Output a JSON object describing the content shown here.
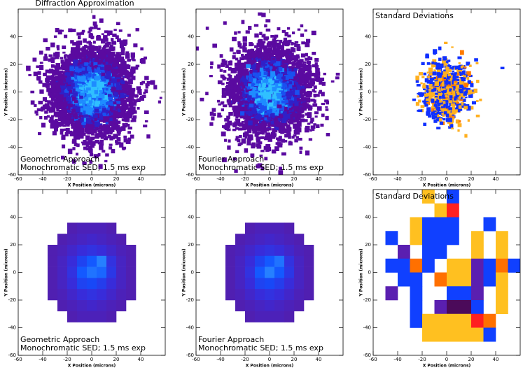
{
  "chart_data": [
    {
      "type": "speckle",
      "title": "Diffraction Approximation",
      "notes": [
        "Geometric Approach",
        "Monochromatic SED; 1.5 ms exp"
      ],
      "x_label": "X Position (microns)",
      "y_label": "Y Position (microns)",
      "xlim": [
        -60,
        60
      ],
      "ylim": [
        -60,
        60
      ],
      "xticks": [
        -60,
        -40,
        -20,
        0,
        20,
        40
      ],
      "yticks": [
        -60,
        -40,
        -20,
        0,
        20,
        40
      ]
    },
    {
      "type": "speckle",
      "notes": [
        "Fourier Approach",
        "Monochromatic SED; 1.5 ms exp"
      ],
      "x_label": "X Position (microns)",
      "y_label": "Y Position (microns)",
      "xlim": [
        -60,
        60
      ],
      "ylim": [
        -60,
        60
      ],
      "xticks": [
        -60,
        -40,
        -20,
        0,
        20,
        40
      ],
      "yticks": [
        -60,
        -40,
        -20,
        0,
        20,
        40
      ]
    },
    {
      "type": "speckle-deviation",
      "note_top": "Standard Deviations",
      "x_label": "X Position (microns)",
      "y_label": "Y Position (microns)",
      "xlim": [
        -60,
        60
      ],
      "ylim": [
        -60,
        60
      ],
      "xticks": [
        -60,
        -40,
        -20,
        0,
        20,
        40
      ],
      "yticks": [
        -60,
        -40,
        -20,
        0,
        20,
        40
      ]
    },
    {
      "type": "heatmap",
      "notes": [
        "Geometric Approach",
        "Monochromatic SED; 1.5 ms exp"
      ],
      "x_label": "X Position (microns)",
      "y_label": "Y Position (microns)",
      "xlim": [
        -60,
        60
      ],
      "ylim": [
        -60,
        60
      ],
      "xticks": [
        -60,
        -40,
        -20,
        0,
        20,
        40
      ],
      "yticks": [
        -60,
        -40,
        -20,
        0,
        20,
        40
      ],
      "colorscale": [
        "#5a1aa0",
        "#3a2ad8",
        "#1050ff",
        "#38a8ff"
      ],
      "x": [
        -32,
        -24,
        -16,
        -8,
        0,
        8,
        16,
        24,
        32
      ],
      "y": [
        32,
        24,
        16,
        8,
        0,
        -8,
        -16,
        -24,
        -32
      ],
      "z": [
        [
          null,
          null,
          0.1,
          0.15,
          0.15,
          0.15,
          0.1,
          null,
          null
        ],
        [
          null,
          0.1,
          0.15,
          0.2,
          0.25,
          0.2,
          0.15,
          0.1,
          null
        ],
        [
          0.1,
          0.15,
          0.25,
          0.35,
          0.4,
          0.35,
          0.25,
          0.15,
          0.1
        ],
        [
          0.1,
          0.2,
          0.35,
          0.55,
          0.7,
          0.85,
          0.4,
          0.2,
          0.1
        ],
        [
          0.1,
          0.2,
          0.4,
          0.7,
          0.8,
          0.75,
          0.45,
          0.2,
          0.1
        ],
        [
          0.1,
          0.2,
          0.35,
          0.55,
          0.6,
          0.5,
          0.35,
          0.2,
          0.1
        ],
        [
          0.1,
          0.15,
          0.25,
          0.35,
          0.4,
          0.35,
          0.25,
          0.15,
          0.1
        ],
        [
          null,
          0.1,
          0.15,
          0.2,
          0.25,
          0.2,
          0.15,
          0.1,
          null
        ],
        [
          null,
          null,
          0.1,
          0.15,
          0.15,
          0.15,
          0.1,
          null,
          null
        ]
      ]
    },
    {
      "type": "heatmap",
      "notes": [
        "Fourier Approach",
        "Monochromatic SED; 1.5 ms exp"
      ],
      "x_label": "X Position (microns)",
      "y_label": "Y Position (microns)",
      "xlim": [
        -60,
        60
      ],
      "ylim": [
        -60,
        60
      ],
      "xticks": [
        -60,
        -40,
        -20,
        0,
        20,
        40
      ],
      "yticks": [
        -60,
        -40,
        -20,
        0,
        20,
        40
      ],
      "colorscale": [
        "#5a1aa0",
        "#3a2ad8",
        "#1050ff",
        "#38a8ff"
      ],
      "x": [
        -32,
        -24,
        -16,
        -8,
        0,
        8,
        16,
        24,
        32
      ],
      "y": [
        32,
        24,
        16,
        8,
        0,
        -8,
        -16,
        -24,
        -32
      ],
      "z": [
        [
          null,
          null,
          0.1,
          0.15,
          0.15,
          0.15,
          0.1,
          null,
          null
        ],
        [
          null,
          0.1,
          0.15,
          0.2,
          0.25,
          0.2,
          0.15,
          0.1,
          null
        ],
        [
          0.1,
          0.15,
          0.25,
          0.35,
          0.4,
          0.35,
          0.25,
          0.15,
          0.1
        ],
        [
          0.1,
          0.2,
          0.35,
          0.55,
          0.7,
          0.8,
          0.4,
          0.2,
          0.1
        ],
        [
          0.1,
          0.2,
          0.4,
          0.7,
          0.85,
          0.7,
          0.45,
          0.2,
          0.1
        ],
        [
          0.1,
          0.2,
          0.35,
          0.55,
          0.6,
          0.5,
          0.35,
          0.2,
          0.1
        ],
        [
          0.1,
          0.15,
          0.25,
          0.35,
          0.4,
          0.35,
          0.25,
          0.15,
          0.1
        ],
        [
          null,
          0.1,
          0.15,
          0.2,
          0.25,
          0.2,
          0.15,
          0.1,
          null
        ],
        [
          null,
          null,
          0.1,
          0.15,
          0.15,
          0.15,
          0.1,
          null,
          null
        ]
      ]
    },
    {
      "type": "heatmap-deviation",
      "note_top": "Standard Deviations",
      "x_label": "X Position (microns)",
      "y_label": "Y Position (microns)",
      "xlim": [
        -60,
        60
      ],
      "ylim": [
        -60,
        60
      ],
      "xticks": [
        -60,
        -40,
        -20,
        0,
        20,
        40
      ],
      "yticks": [
        -60,
        -40,
        -20,
        0,
        20,
        40
      ],
      "palette": [
        "#4b0a5a",
        "#5a1fb0",
        "#1040ff",
        "#ffffff",
        "#ffc020",
        "#ff7000",
        "#ff2020"
      ],
      "x": [
        -55,
        -45,
        -35,
        -25,
        -15,
        -5,
        5,
        15,
        25,
        35,
        45,
        55
      ],
      "y": [
        55,
        45,
        35,
        25,
        15,
        5,
        -5,
        -15,
        -25,
        -35,
        -45
      ],
      "z": [
        [
          null,
          null,
          null,
          null,
          1,
          null,
          -1,
          null,
          null,
          null,
          null,
          null
        ],
        [
          null,
          null,
          null,
          null,
          null,
          1,
          3,
          null,
          null,
          null,
          null,
          null
        ],
        [
          null,
          null,
          null,
          1,
          -1,
          -1,
          -1,
          null,
          null,
          -1,
          null,
          null
        ],
        [
          null,
          -1,
          null,
          1,
          -1,
          -1,
          -1,
          null,
          1,
          null,
          1,
          null
        ],
        [
          null,
          null,
          -2,
          null,
          -1,
          -1,
          null,
          null,
          1,
          null,
          1,
          null
        ],
        [
          null,
          -1,
          -1,
          2,
          -1,
          null,
          1,
          1,
          -2,
          -1,
          2,
          -1
        ],
        [
          null,
          null,
          -1,
          -1,
          null,
          2,
          1,
          1,
          -2,
          -1,
          1,
          null
        ],
        [
          null,
          -2,
          null,
          -1,
          null,
          null,
          -1,
          -1,
          -2,
          null,
          1,
          null
        ],
        [
          null,
          null,
          null,
          -1,
          null,
          -2,
          -3,
          -3,
          -1,
          null,
          1,
          null
        ],
        [
          null,
          null,
          null,
          -1,
          1,
          1,
          1,
          1,
          3,
          2,
          null,
          null
        ],
        [
          null,
          null,
          null,
          null,
          1,
          1,
          1,
          1,
          1,
          -1,
          null,
          null
        ]
      ]
    }
  ]
}
